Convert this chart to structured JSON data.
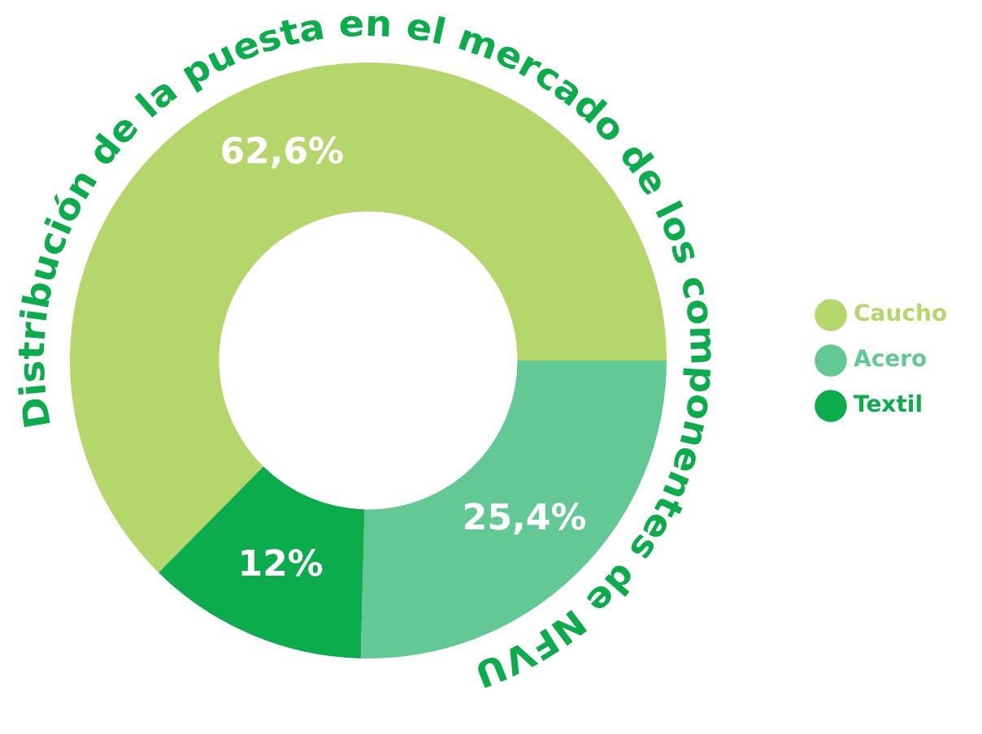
{
  "chart_data": {
    "type": "donut",
    "title": "Distribución de la puesta en el mercado de los componentes de NFVU",
    "categories": [
      "Caucho",
      "Acero",
      "Textil"
    ],
    "values": [
      62.6,
      25.4,
      12
    ],
    "colors": [
      "#b5d66a",
      "#62c894",
      "#0aac4c"
    ],
    "value_labels": [
      "62,6%",
      "25,4%",
      "12%"
    ],
    "legend": "right"
  }
}
